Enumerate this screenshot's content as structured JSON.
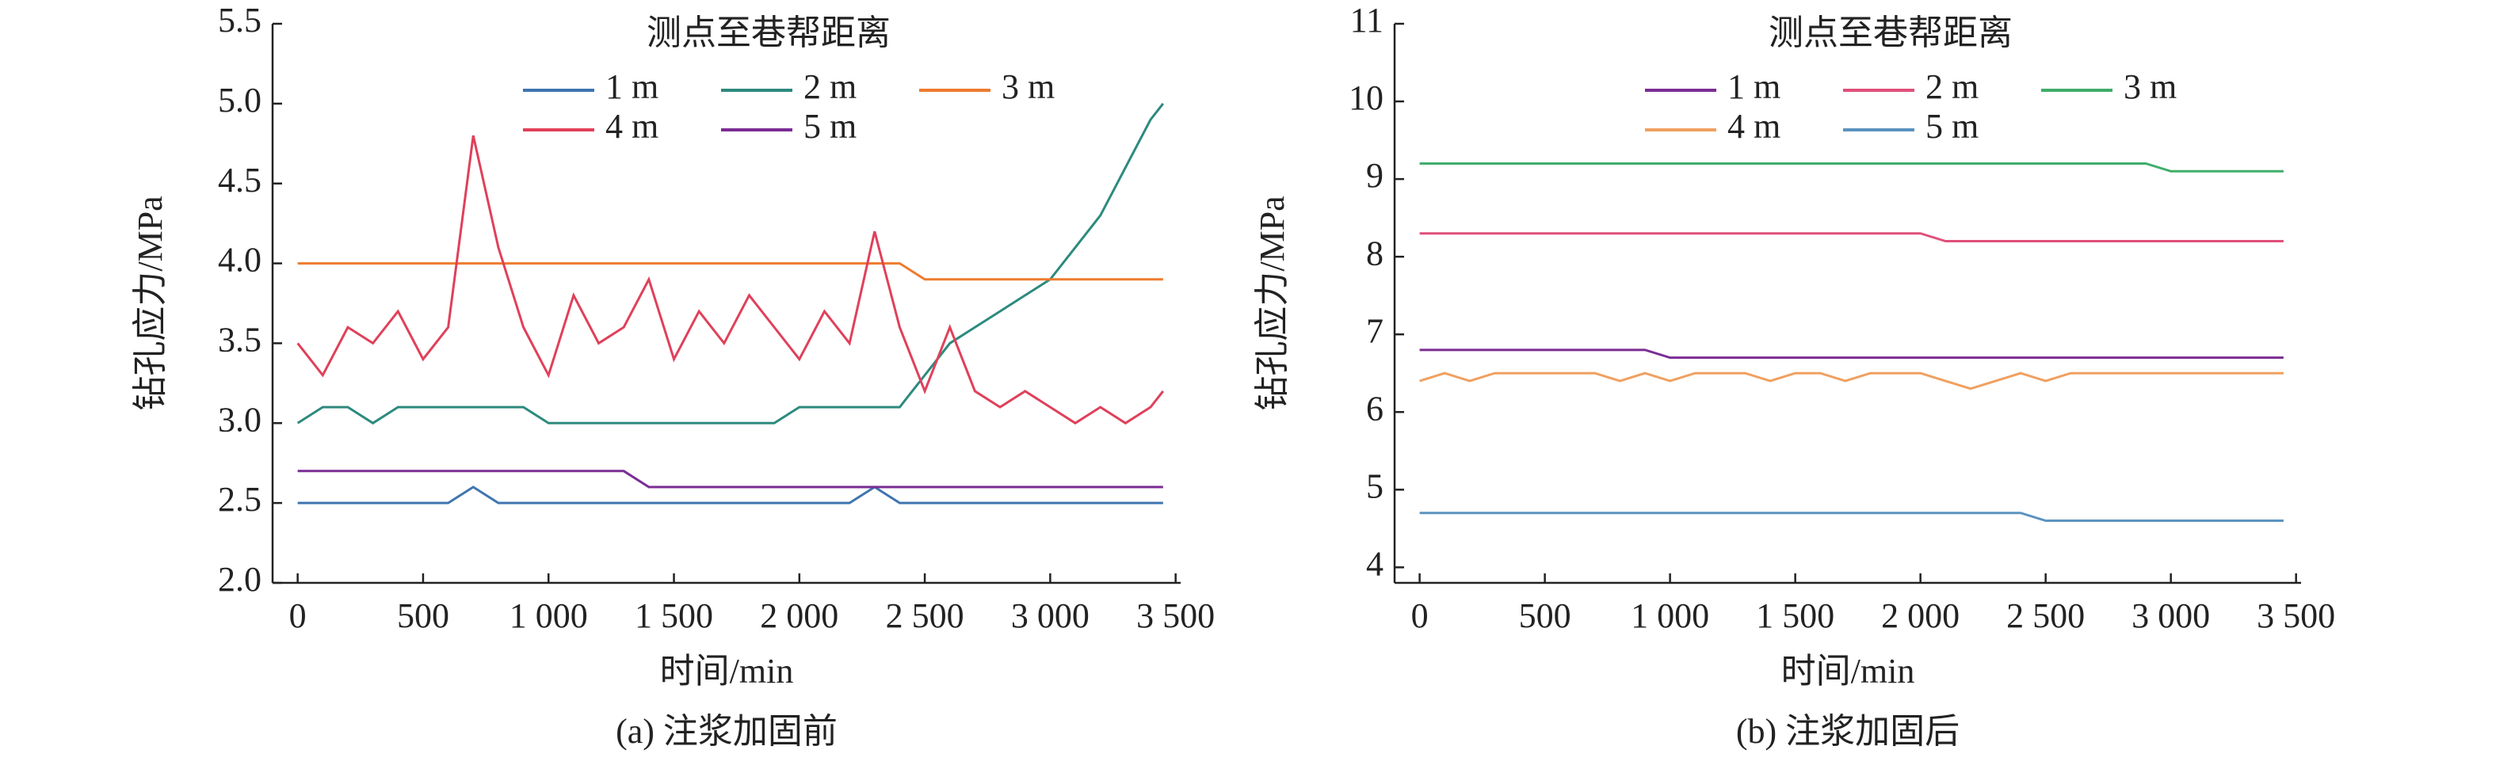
{
  "chart_data": [
    {
      "type": "line",
      "caption": "(a) 注浆加固前",
      "x_label": "时间/min",
      "y_label": "钻孔应力/MPa",
      "legend_title": "测点至巷帮距离",
      "xlim": [
        -100,
        3520
      ],
      "ylim": [
        2,
        5.5
      ],
      "xticks": [
        0,
        500,
        {
          "value": 1000,
          "label": "1 000"
        },
        {
          "value": 1500,
          "label": "1 500"
        },
        {
          "value": 2000,
          "label": "2 000"
        },
        {
          "value": 2500,
          "label": "2 500"
        },
        {
          "value": 3000,
          "label": "3 000"
        },
        {
          "value": 3500,
          "label": "3 500"
        }
      ],
      "yticks": [
        {
          "value": 2,
          "label": "2.0"
        },
        2.5,
        {
          "value": 3,
          "label": "3.0"
        },
        3.5,
        {
          "value": 4,
          "label": "4.0"
        },
        4.5,
        {
          "value": 5,
          "label": "5.0"
        },
        5.5
      ],
      "x": [
        0,
        100,
        200,
        300,
        400,
        500,
        600,
        700,
        800,
        900,
        1000,
        1100,
        1200,
        1300,
        1400,
        1500,
        1600,
        1700,
        1800,
        1900,
        2000,
        2100,
        2200,
        2300,
        2400,
        2500,
        2600,
        2700,
        2800,
        2900,
        3000,
        3100,
        3200,
        3300,
        3400,
        3450
      ],
      "series": [
        {
          "name": "1 m",
          "color": "#3f75b0",
          "values": [
            2.5,
            2.5,
            2.5,
            2.5,
            2.5,
            2.5,
            2.5,
            2.6,
            2.5,
            2.5,
            2.5,
            2.5,
            2.5,
            2.5,
            2.5,
            2.5,
            2.5,
            2.5,
            2.5,
            2.5,
            2.5,
            2.5,
            2.5,
            2.6,
            2.5,
            2.5,
            2.5,
            2.5,
            2.5,
            2.5,
            2.5,
            2.5,
            2.5,
            2.5,
            2.5,
            2.5
          ]
        },
        {
          "name": "2 m",
          "color": "#2d8a7e",
          "values": [
            3.0,
            3.1,
            3.1,
            3.0,
            3.1,
            3.1,
            3.1,
            3.1,
            3.1,
            3.1,
            3.0,
            3.0,
            3.0,
            3.0,
            3.0,
            3.0,
            3.0,
            3.0,
            3.0,
            3.0,
            3.1,
            3.1,
            3.1,
            3.1,
            3.1,
            3.3,
            3.5,
            3.6,
            3.7,
            3.8,
            3.9,
            4.1,
            4.3,
            4.6,
            4.9,
            5.0
          ]
        },
        {
          "name": "3 m",
          "color": "#ee7b2f",
          "values": [
            4.0,
            4.0,
            4.0,
            4.0,
            4.0,
            4.0,
            4.0,
            4.0,
            4.0,
            4.0,
            4.0,
            4.0,
            4.0,
            4.0,
            4.0,
            4.0,
            4.0,
            4.0,
            4.0,
            4.0,
            4.0,
            4.0,
            4.0,
            4.0,
            4.0,
            3.9,
            3.9,
            3.9,
            3.9,
            3.9,
            3.9,
            3.9,
            3.9,
            3.9,
            3.9,
            3.9
          ]
        },
        {
          "name": "4 m",
          "color": "#e0405a",
          "values": [
            3.5,
            3.3,
            3.6,
            3.5,
            3.7,
            3.4,
            3.6,
            4.8,
            4.1,
            3.6,
            3.3,
            3.8,
            3.5,
            3.6,
            3.9,
            3.4,
            3.7,
            3.5,
            3.8,
            3.6,
            3.4,
            3.7,
            3.5,
            4.2,
            3.6,
            3.2,
            3.6,
            3.2,
            3.1,
            3.2,
            3.1,
            3.0,
            3.1,
            3.0,
            3.1,
            3.2
          ]
        },
        {
          "name": "5 m",
          "color": "#7b2d94",
          "values": [
            2.7,
            2.7,
            2.7,
            2.7,
            2.7,
            2.7,
            2.7,
            2.7,
            2.7,
            2.7,
            2.7,
            2.7,
            2.7,
            2.7,
            2.6,
            2.6,
            2.6,
            2.6,
            2.6,
            2.6,
            2.6,
            2.6,
            2.6,
            2.6,
            2.6,
            2.6,
            2.6,
            2.6,
            2.6,
            2.6,
            2.6,
            2.6,
            2.6,
            2.6,
            2.6,
            2.6
          ]
        }
      ]
    },
    {
      "type": "line",
      "caption": "(b) 注浆加固后",
      "x_label": "时间/min",
      "y_label": "钻孔应力/MPa",
      "legend_title": "测点至巷帮距离",
      "xlim": [
        -100,
        3520
      ],
      "ylim": [
        3.8,
        11
      ],
      "xticks": [
        0,
        500,
        {
          "value": 1000,
          "label": "1 000"
        },
        {
          "value": 1500,
          "label": "1 500"
        },
        {
          "value": 2000,
          "label": "2 000"
        },
        {
          "value": 2500,
          "label": "2 500"
        },
        {
          "value": 3000,
          "label": "3 000"
        },
        {
          "value": 3500,
          "label": "3 500"
        }
      ],
      "yticks": [
        4,
        5,
        6,
        7,
        8,
        9,
        10,
        11
      ],
      "x": [
        0,
        100,
        200,
        300,
        400,
        500,
        600,
        700,
        800,
        900,
        1000,
        1100,
        1200,
        1300,
        1400,
        1500,
        1600,
        1700,
        1800,
        1900,
        2000,
        2100,
        2200,
        2300,
        2400,
        2500,
        2600,
        2700,
        2800,
        2900,
        3000,
        3100,
        3200,
        3300,
        3400,
        3450
      ],
      "series": [
        {
          "name": "1 m",
          "color": "#7b2d94",
          "values": [
            6.8,
            6.8,
            6.8,
            6.8,
            6.8,
            6.8,
            6.8,
            6.8,
            6.8,
            6.8,
            6.7,
            6.7,
            6.7,
            6.7,
            6.7,
            6.7,
            6.7,
            6.7,
            6.7,
            6.7,
            6.7,
            6.7,
            6.7,
            6.7,
            6.7,
            6.7,
            6.7,
            6.7,
            6.7,
            6.7,
            6.7,
            6.7,
            6.7,
            6.7,
            6.7,
            6.7
          ]
        },
        {
          "name": "2 m",
          "color": "#e0507a",
          "values": [
            8.3,
            8.3,
            8.3,
            8.3,
            8.3,
            8.3,
            8.3,
            8.3,
            8.3,
            8.3,
            8.3,
            8.3,
            8.3,
            8.3,
            8.3,
            8.3,
            8.3,
            8.3,
            8.3,
            8.3,
            8.3,
            8.2,
            8.2,
            8.2,
            8.2,
            8.2,
            8.2,
            8.2,
            8.2,
            8.2,
            8.2,
            8.2,
            8.2,
            8.2,
            8.2,
            8.2
          ]
        },
        {
          "name": "3 m",
          "color": "#3fae6a",
          "values": [
            9.2,
            9.2,
            9.2,
            9.2,
            9.2,
            9.2,
            9.2,
            9.2,
            9.2,
            9.2,
            9.2,
            9.2,
            9.2,
            9.2,
            9.2,
            9.2,
            9.2,
            9.2,
            9.2,
            9.2,
            9.2,
            9.2,
            9.2,
            9.2,
            9.2,
            9.2,
            9.2,
            9.2,
            9.2,
            9.2,
            9.1,
            9.1,
            9.1,
            9.1,
            9.1,
            9.1
          ]
        },
        {
          "name": "4 m",
          "color": "#f0a060",
          "values": [
            6.4,
            6.5,
            6.4,
            6.5,
            6.5,
            6.5,
            6.5,
            6.5,
            6.4,
            6.5,
            6.4,
            6.5,
            6.5,
            6.5,
            6.4,
            6.5,
            6.5,
            6.4,
            6.5,
            6.5,
            6.5,
            6.4,
            6.3,
            6.4,
            6.5,
            6.4,
            6.5,
            6.5,
            6.5,
            6.5,
            6.5,
            6.5,
            6.5,
            6.5,
            6.5,
            6.5
          ]
        },
        {
          "name": "5 m",
          "color": "#5b93bf",
          "values": [
            4.7,
            4.7,
            4.7,
            4.7,
            4.7,
            4.7,
            4.7,
            4.7,
            4.7,
            4.7,
            4.7,
            4.7,
            4.7,
            4.7,
            4.7,
            4.7,
            4.7,
            4.7,
            4.7,
            4.7,
            4.7,
            4.7,
            4.7,
            4.7,
            4.7,
            4.6,
            4.6,
            4.6,
            4.6,
            4.6,
            4.6,
            4.6,
            4.6,
            4.6,
            4.6,
            4.6
          ]
        }
      ]
    }
  ]
}
